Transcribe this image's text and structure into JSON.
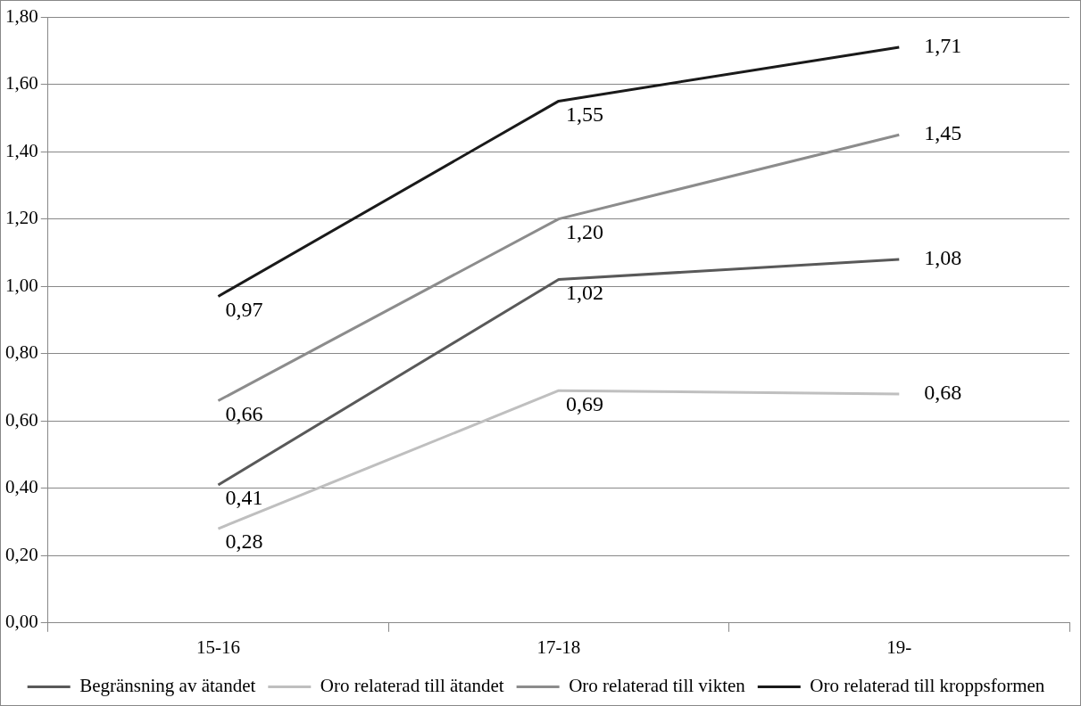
{
  "chart_data": {
    "type": "line",
    "categories": [
      "15-16",
      "17-18",
      "19-"
    ],
    "series": [
      {
        "name": "Begränsning av ätandet",
        "color": "#595959",
        "values": [
          0.41,
          1.02,
          1.08
        ],
        "value_labels": [
          "0,41",
          "1,02",
          "1,08"
        ]
      },
      {
        "name": "Oro relaterad till ätandet",
        "color": "#bfbfbf",
        "values": [
          0.28,
          0.69,
          0.68
        ],
        "value_labels": [
          "0,28",
          "0,69",
          "0,68"
        ]
      },
      {
        "name": "Oro relaterad till vikten",
        "color": "#8c8c8c",
        "values": [
          0.66,
          1.2,
          1.45
        ],
        "value_labels": [
          "0,66",
          "1,20",
          "1,45"
        ]
      },
      {
        "name": "Oro relaterad till kroppsformen",
        "color": "#1a1a1a",
        "values": [
          0.97,
          1.55,
          1.71
        ],
        "value_labels": [
          "0,97",
          "1,55",
          "1,71"
        ]
      }
    ],
    "ylim": [
      0,
      1.8
    ],
    "yticks": [
      {
        "value": 0,
        "label": "0,00"
      },
      {
        "value": 0.2,
        "label": "0,20"
      },
      {
        "value": 0.4,
        "label": "0,40"
      },
      {
        "value": 0.6,
        "label": "0,60"
      },
      {
        "value": 0.8,
        "label": "0,80"
      },
      {
        "value": 1,
        "label": "1,00"
      },
      {
        "value": 1.2,
        "label": "1,20"
      },
      {
        "value": 1.4,
        "label": "1,40"
      },
      {
        "value": 1.6,
        "label": "1,60"
      },
      {
        "value": 1.8,
        "label": "1,80"
      }
    ],
    "grid": "y",
    "legend": "bottom",
    "marker": "none",
    "line_style": "solid"
  }
}
